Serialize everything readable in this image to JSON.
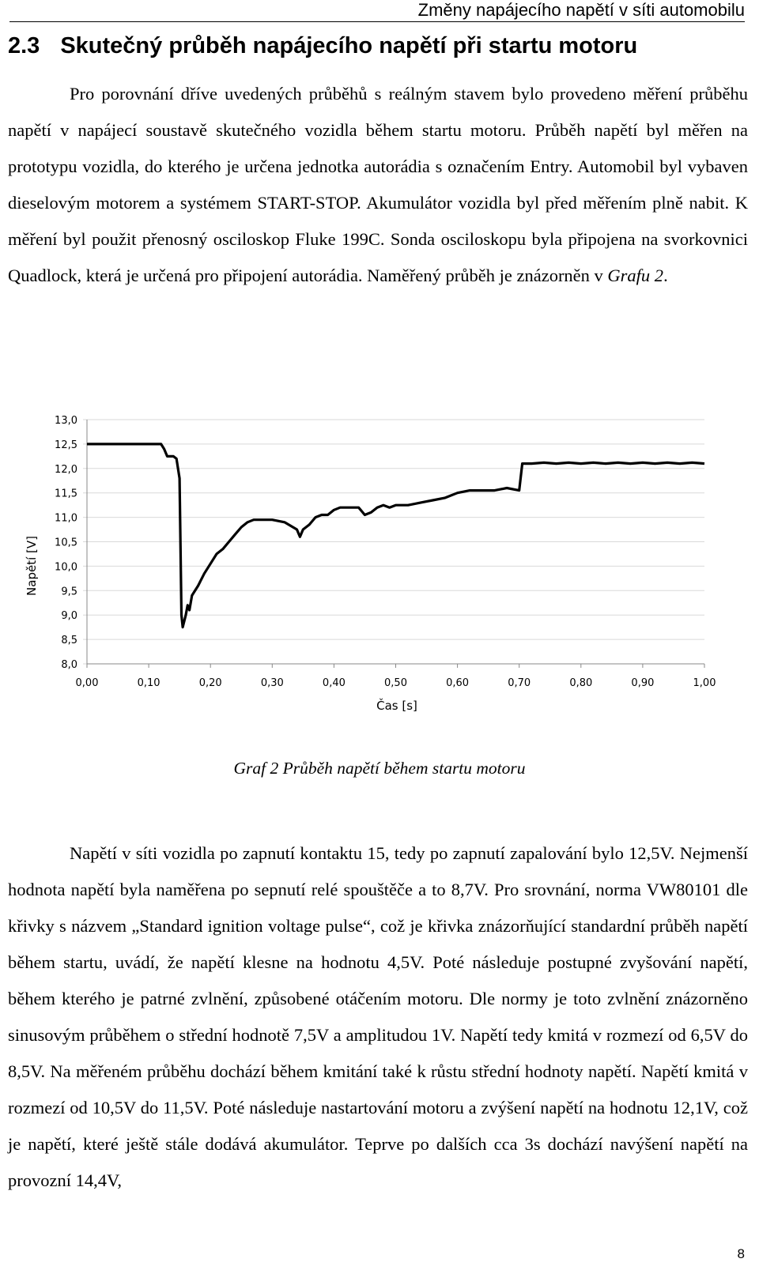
{
  "header": {
    "running_title": "Změny napájecího napětí v síti automobilu"
  },
  "section": {
    "number": "2.3",
    "title": "Skutečný průběh napájecího napětí při startu motoru"
  },
  "paragraph1": {
    "text_before": "Pro porovnání dříve uvedených průběhů s reálným stavem bylo provedeno měření průběhu napětí v napájecí soustavě skutečného vozidla během startu motoru. Průběh napětí byl měřen na prototypu vozidla, do kterého je určena jednotka autorádia s označením Entry. Automobil byl vybaven dieselovým motorem a systémem START-STOP. Akumulátor vozidla byl před měřením plně nabit. K měření byl použit přenosný osciloskop Fluke 199C. Sonda osciloskopu byla připojena na svorkovnici Quadlock, která je určená pro připojení autorádia. Naměřený průběh je znázorněn v ",
    "ref_italic": "Grafu 2",
    "text_after": "."
  },
  "chart_data": {
    "type": "line",
    "title": "",
    "xlabel": "Čas [s]",
    "ylabel": "Napětí [V]",
    "xlim": [
      0,
      1.0
    ],
    "ylim": [
      8.0,
      13.0
    ],
    "x_ticks": [
      "0,00",
      "0,10",
      "0,20",
      "0,30",
      "0,40",
      "0,50",
      "0,60",
      "0,70",
      "0,80",
      "0,90",
      "1,00"
    ],
    "y_ticks": [
      "13,0",
      "12,5",
      "12,0",
      "11,5",
      "11,0",
      "10,5",
      "10,0",
      "9,5",
      "9,0",
      "8,5",
      "8,0"
    ],
    "grid": "horizontal",
    "series": [
      {
        "x": [
          0.0,
          0.12,
          0.125,
          0.13,
          0.135,
          0.14,
          0.145,
          0.15,
          0.153,
          0.155,
          0.16,
          0.163,
          0.166,
          0.17,
          0.18,
          0.19,
          0.2,
          0.21,
          0.22,
          0.23,
          0.24,
          0.25,
          0.26,
          0.27,
          0.28,
          0.29,
          0.3,
          0.32,
          0.34,
          0.345,
          0.35,
          0.36,
          0.37,
          0.38,
          0.39,
          0.4,
          0.41,
          0.42,
          0.44,
          0.45,
          0.46,
          0.47,
          0.48,
          0.49,
          0.5,
          0.52,
          0.54,
          0.56,
          0.58,
          0.6,
          0.62,
          0.64,
          0.66,
          0.68,
          0.7,
          0.705,
          0.72,
          0.74,
          0.76,
          0.78,
          0.8,
          0.82,
          0.84,
          0.86,
          0.88,
          0.9,
          0.92,
          0.94,
          0.96,
          0.98,
          1.0
        ],
        "y": [
          12.5,
          12.5,
          12.4,
          12.25,
          12.25,
          12.25,
          12.2,
          11.8,
          9.0,
          8.75,
          9.0,
          9.2,
          9.1,
          9.4,
          9.6,
          9.85,
          10.05,
          10.25,
          10.35,
          10.5,
          10.65,
          10.8,
          10.9,
          10.95,
          10.95,
          10.95,
          10.95,
          10.9,
          10.75,
          10.6,
          10.75,
          10.85,
          11.0,
          11.05,
          11.05,
          11.15,
          11.2,
          11.2,
          11.2,
          11.05,
          11.1,
          11.2,
          11.25,
          11.2,
          11.25,
          11.25,
          11.3,
          11.35,
          11.4,
          11.5,
          11.55,
          11.55,
          11.55,
          11.6,
          11.55,
          12.1,
          12.1,
          12.12,
          12.1,
          12.12,
          12.1,
          12.12,
          12.1,
          12.12,
          12.1,
          12.12,
          12.1,
          12.12,
          12.1,
          12.12,
          12.1
        ]
      }
    ]
  },
  "caption": {
    "text": "Graf 2 Průběh napětí během startu motoru"
  },
  "paragraph2": {
    "text": "Napětí v síti vozidla po zapnutí kontaktu 15, tedy po zapnutí zapalování bylo 12,5V. Nejmenší hodnota napětí byla naměřena po sepnutí relé spouštěče a to 8,7V. Pro srovnání, norma VW80101 dle křivky s názvem „Standard ignition voltage pulse“, což je křivka znázorňující standardní průběh napětí během startu, uvádí, že napětí klesne na hodnotu 4,5V. Poté následuje postupné zvyšování napětí, během kterého je patrné zvlnění, způsobené otáčením motoru. Dle normy je toto zvlnění znázorněno sinusovým průběhem o střední hodnotě 7,5V a amplitudou 1V. Napětí tedy kmitá v rozmezí od 6,5V do 8,5V. Na měřeném průběhu dochází během kmitání také k růstu střední hodnoty napětí. Napětí kmitá v rozmezí od 10,5V do 11,5V. Poté následuje nastartování motoru a zvýšení napětí na hodnotu 12,1V, což je napětí, které ještě stále dodává akumulátor. Teprve po dalších cca 3s dochází navýšení napětí na provozní 14,4V,"
  },
  "footer": {
    "page_number": "8"
  }
}
